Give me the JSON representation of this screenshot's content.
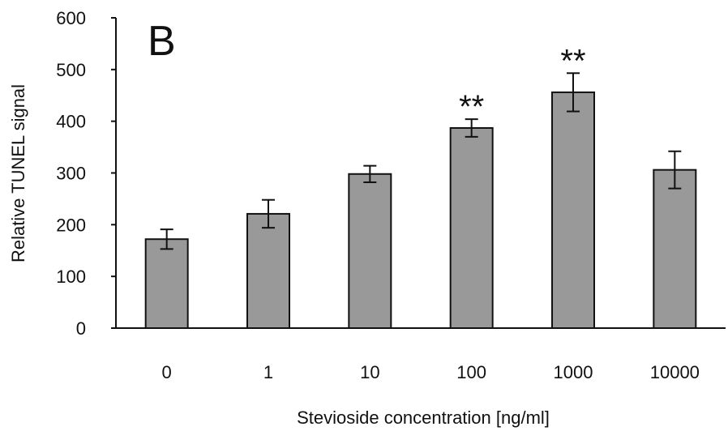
{
  "chart_data": {
    "type": "bar",
    "panel_label": "B",
    "title": "",
    "xlabel": "Stevioside concentration [ng/ml]",
    "ylabel": "Relative TUNEL signal",
    "categories": [
      "0",
      "1",
      "10",
      "100",
      "1000",
      "10000"
    ],
    "values": [
      172,
      221,
      298,
      387,
      456,
      306
    ],
    "errors": [
      19,
      27,
      16,
      17,
      37,
      36
    ],
    "significance": [
      "",
      "",
      "",
      "**",
      "**",
      ""
    ],
    "ylim": [
      0,
      600
    ],
    "yticks": [
      0,
      100,
      200,
      300,
      400,
      500,
      600
    ],
    "ytick_labels": [
      "0",
      "100",
      "200",
      "300",
      "400",
      "500",
      "600"
    ],
    "grid": false,
    "bar_color": "#999999",
    "bar_edge_color": "#111111"
  }
}
